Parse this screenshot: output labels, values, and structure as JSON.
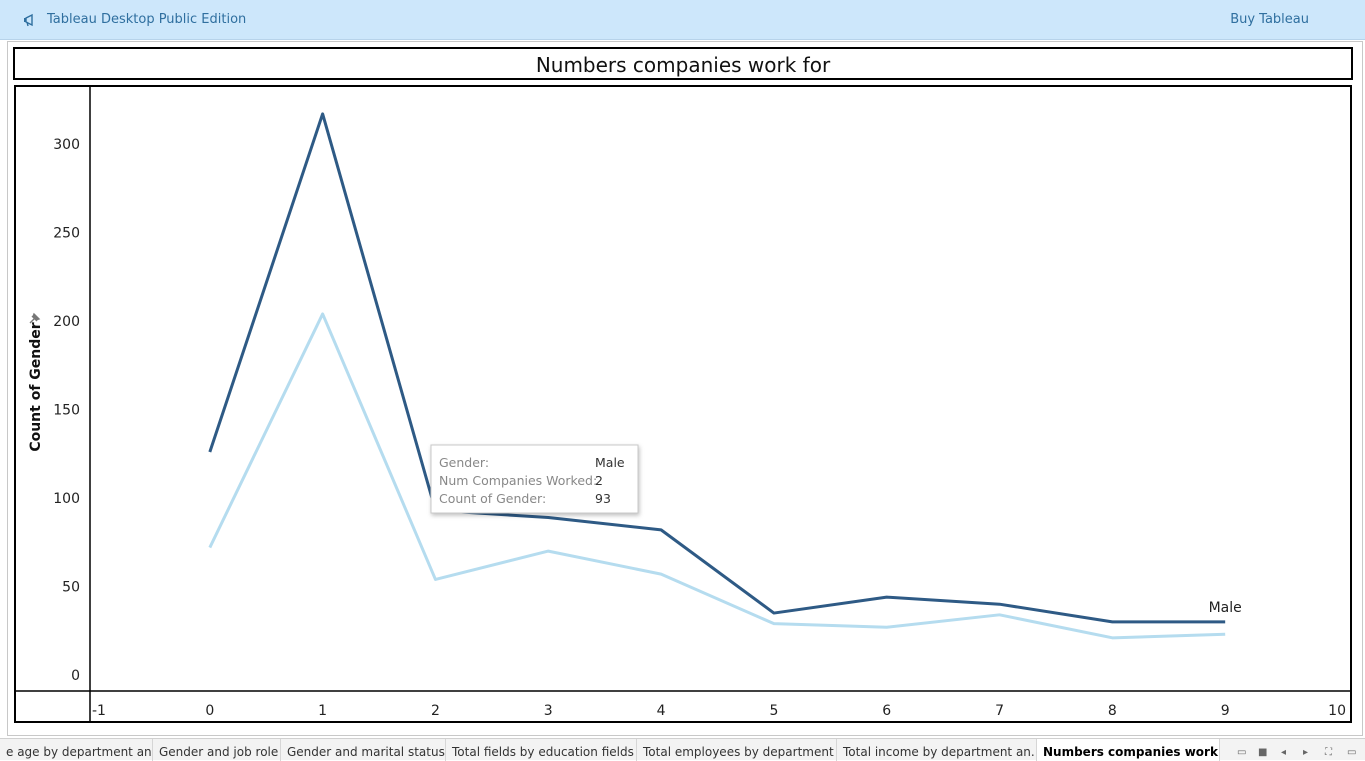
{
  "app": {
    "title": "Tableau Desktop Public Edition",
    "buy_label": "Buy Tableau",
    "megaphone_icon": "megaphone-icon"
  },
  "sheet": {
    "title": "Numbers companies work for"
  },
  "tooltip": {
    "rows": [
      {
        "label": "Gender:",
        "value": "Male"
      },
      {
        "label": "Num Companies Worked:",
        "value": "2"
      },
      {
        "label": "Count of Gender:",
        "value": "93"
      }
    ]
  },
  "chart_data": {
    "type": "line",
    "title": "Numbers companies work for",
    "xlabel": "",
    "ylabel": "Count of Gender",
    "x": [
      0,
      1,
      2,
      3,
      4,
      5,
      6,
      7,
      8,
      9
    ],
    "x_ticks": [
      "-1",
      "0",
      "1",
      "2",
      "3",
      "4",
      "5",
      "6",
      "7",
      "8",
      "9",
      "10"
    ],
    "y_ticks": [
      "0",
      "50",
      "100",
      "150",
      "200",
      "250",
      "300"
    ],
    "xlim": [
      -1,
      10
    ],
    "ylim": [
      -5,
      325
    ],
    "grid": false,
    "series": [
      {
        "name": "Male",
        "color": "#2e5a85",
        "values": [
          126,
          317,
          93,
          89,
          82,
          35,
          44,
          40,
          30,
          30
        ],
        "end_label": "Male"
      },
      {
        "name": "",
        "color": "#b5dcef",
        "values": [
          72,
          204,
          54,
          70,
          57,
          29,
          27,
          34,
          21,
          23
        ]
      }
    ]
  },
  "tabs": [
    {
      "label": "e age by department and ...",
      "active": false
    },
    {
      "label": "Gender and job role",
      "active": false
    },
    {
      "label": "Gender and marital status",
      "active": false
    },
    {
      "label": "Total fields by education fields",
      "active": false
    },
    {
      "label": "Total employees by department ...",
      "active": false
    },
    {
      "label": "Total income by department an...",
      "active": false
    },
    {
      "label": "Numbers companies work for",
      "active": true
    }
  ],
  "tab_controls": [
    "filmstrip-icon",
    "grid-view-icon",
    "prev-sheet-icon",
    "next-sheet-icon",
    "fullscreen-icon",
    "presentation-icon"
  ]
}
